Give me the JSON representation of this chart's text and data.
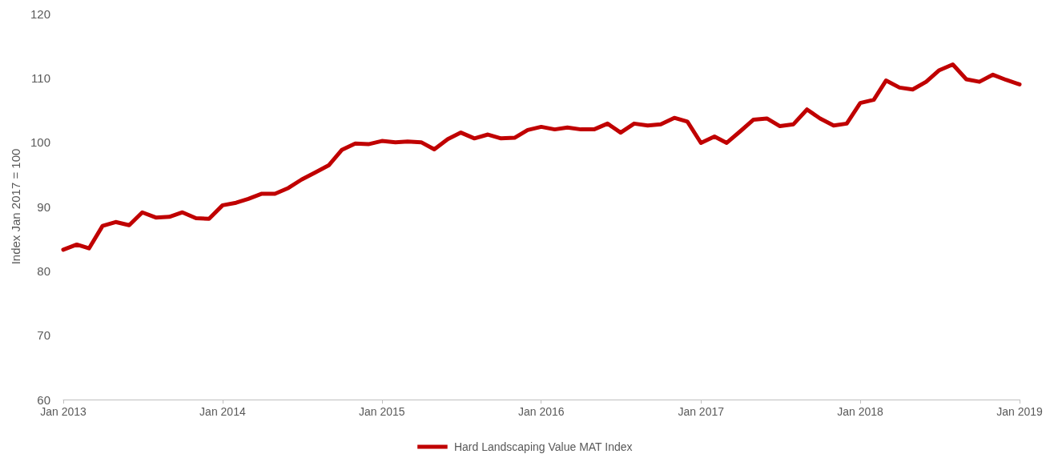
{
  "chart_data": {
    "type": "line",
    "ylabel": "Index Jan 2017 = 100",
    "x": [
      "2013-01",
      "2013-02",
      "2013-03",
      "2013-04",
      "2013-05",
      "2013-06",
      "2013-07",
      "2013-08",
      "2013-09",
      "2013-10",
      "2013-11",
      "2013-12",
      "2014-01",
      "2014-02",
      "2014-03",
      "2014-04",
      "2014-05",
      "2014-06",
      "2014-07",
      "2014-08",
      "2014-09",
      "2014-10",
      "2014-11",
      "2014-12",
      "2015-01",
      "2015-02",
      "2015-03",
      "2015-04",
      "2015-05",
      "2015-06",
      "2015-07",
      "2015-08",
      "2015-09",
      "2015-10",
      "2015-11",
      "2015-12",
      "2016-01",
      "2016-02",
      "2016-03",
      "2016-04",
      "2016-05",
      "2016-06",
      "2016-07",
      "2016-08",
      "2016-09",
      "2016-10",
      "2016-11",
      "2016-12",
      "2017-01",
      "2017-02",
      "2017-03",
      "2017-04",
      "2017-05",
      "2017-06",
      "2017-07",
      "2017-08",
      "2017-09",
      "2017-10",
      "2017-11",
      "2017-12",
      "2018-01",
      "2018-02",
      "2018-03",
      "2018-04",
      "2018-05",
      "2018-06",
      "2018-07",
      "2018-08",
      "2018-09",
      "2018-10",
      "2018-11",
      "2018-12",
      "2019-01"
    ],
    "series": [
      {
        "name": "Hard Landscaping Value MAT Index",
        "color": "#c00000",
        "values": [
          83.3,
          84.1,
          83.5,
          87.0,
          87.6,
          87.1,
          89.1,
          88.3,
          88.4,
          89.1,
          88.2,
          88.1,
          90.2,
          90.6,
          91.2,
          92.0,
          92.0,
          92.9,
          94.2,
          95.3,
          96.4,
          98.8,
          99.8,
          99.7,
          100.2,
          100.0,
          100.1,
          100.0,
          98.9,
          100.5,
          101.5,
          100.6,
          101.2,
          100.6,
          100.7,
          101.9,
          102.4,
          102.0,
          102.3,
          102.0,
          102.0,
          102.9,
          101.5,
          102.9,
          102.6,
          102.8,
          103.8,
          103.2,
          99.9,
          100.9,
          99.9,
          101.7,
          103.5,
          103.7,
          102.5,
          102.8,
          105.1,
          103.7,
          102.6,
          102.9,
          106.1,
          106.6,
          109.6,
          108.5,
          108.2,
          109.4,
          111.2,
          112.1,
          109.8,
          109.4,
          110.5,
          109.7,
          109.0
        ]
      }
    ],
    "xlim": [
      "2013-01",
      "2019-01"
    ],
    "xticks": [
      {
        "value": "2013-01",
        "label": "Jan 2013"
      },
      {
        "value": "2014-01",
        "label": "Jan 2014"
      },
      {
        "value": "2015-01",
        "label": "Jan 2015"
      },
      {
        "value": "2016-01",
        "label": "Jan 2016"
      },
      {
        "value": "2017-01",
        "label": "Jan 2017"
      },
      {
        "value": "2018-01",
        "label": "Jan 2018"
      },
      {
        "value": "2019-01",
        "label": "Jan 2019"
      }
    ],
    "ylim": [
      60,
      120
    ],
    "yticks": [
      60,
      70,
      80,
      90,
      100,
      110,
      120
    ],
    "grid": false,
    "legend": "bottom",
    "marker": "none",
    "line_style": "solid"
  }
}
